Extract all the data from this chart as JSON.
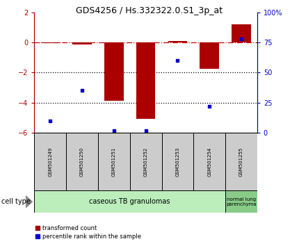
{
  "title": "GDS4256 / Hs.332322.0.S1_3p_at",
  "samples": [
    "GSM501249",
    "GSM501250",
    "GSM501251",
    "GSM501252",
    "GSM501253",
    "GSM501254",
    "GSM501255"
  ],
  "red_values": [
    -0.05,
    -0.12,
    -3.85,
    -5.05,
    0.1,
    -1.75,
    1.2
  ],
  "blue_values": [
    10,
    35,
    2,
    2,
    60,
    22,
    78
  ],
  "ylim_left": [
    -6,
    2
  ],
  "ylim_right": [
    0,
    100
  ],
  "yticks_left": [
    -6,
    -4,
    -2,
    0,
    2
  ],
  "yticks_right": [
    0,
    25,
    50,
    75,
    100
  ],
  "ytick_labels_right": [
    "0",
    "25",
    "50",
    "75",
    "100%"
  ],
  "red_color": "#AA0000",
  "blue_color": "#0000CC",
  "dashed_line_color": "#CC0000",
  "bar_width": 0.6,
  "group1_label": "caseous TB granulomas",
  "group2_label": "normal lung\nparenchyma",
  "cell_type_label": "cell type",
  "legend_red": "transformed count",
  "legend_blue": "percentile rank within the sample",
  "bg_color": "#FFFFFF",
  "plot_bg_color": "#FFFFFF",
  "sample_box_color": "#CCCCCC",
  "group1_box_color": "#BBEEBB",
  "group2_box_color": "#88CC88",
  "dotted_line_color": "#000000",
  "title_fontsize": 9,
  "tick_fontsize": 7,
  "sample_fontsize": 5,
  "group_fontsize": 7,
  "legend_fontsize": 6,
  "cell_type_fontsize": 7
}
